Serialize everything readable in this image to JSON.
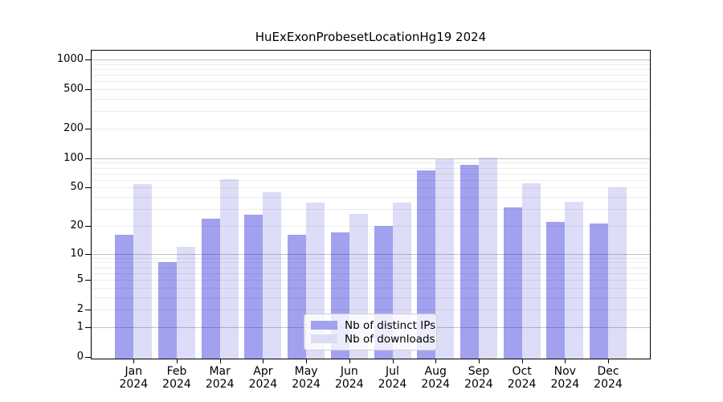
{
  "title": "HuExExonProbesetLocationHg19 2024",
  "chart_data": {
    "type": "bar",
    "title": "HuExExonProbesetLocationHg19 2024",
    "categories": [
      "Jan",
      "Feb",
      "Mar",
      "Apr",
      "May",
      "Jun",
      "Jul",
      "Aug",
      "Sep",
      "Oct",
      "Nov",
      "Dec"
    ],
    "category_year": "2024",
    "series": [
      {
        "name": "Nb of distinct IPs",
        "color": "#a2a2ef",
        "fill": "rgba(31,31,219,0.42)",
        "values": [
          16,
          8,
          24,
          26,
          16,
          17,
          20,
          75,
          85,
          31,
          22,
          21
        ]
      },
      {
        "name": "Nb of downloads",
        "color": "#dcdcf7",
        "fill": "rgba(26,26,209,0.15)",
        "values": [
          54,
          12,
          61,
          45,
          35,
          27,
          35,
          97,
          101,
          55,
          36,
          50
        ]
      }
    ],
    "yticks": [
      0,
      1,
      2,
      5,
      10,
      20,
      50,
      100,
      200,
      500,
      1000
    ],
    "major_gridlines": [
      1,
      10,
      100,
      1000
    ],
    "scale": "log10(value+1)",
    "ylim": [
      0,
      1000
    ],
    "grid": "major+minor",
    "legend_position": "bottom-center"
  }
}
